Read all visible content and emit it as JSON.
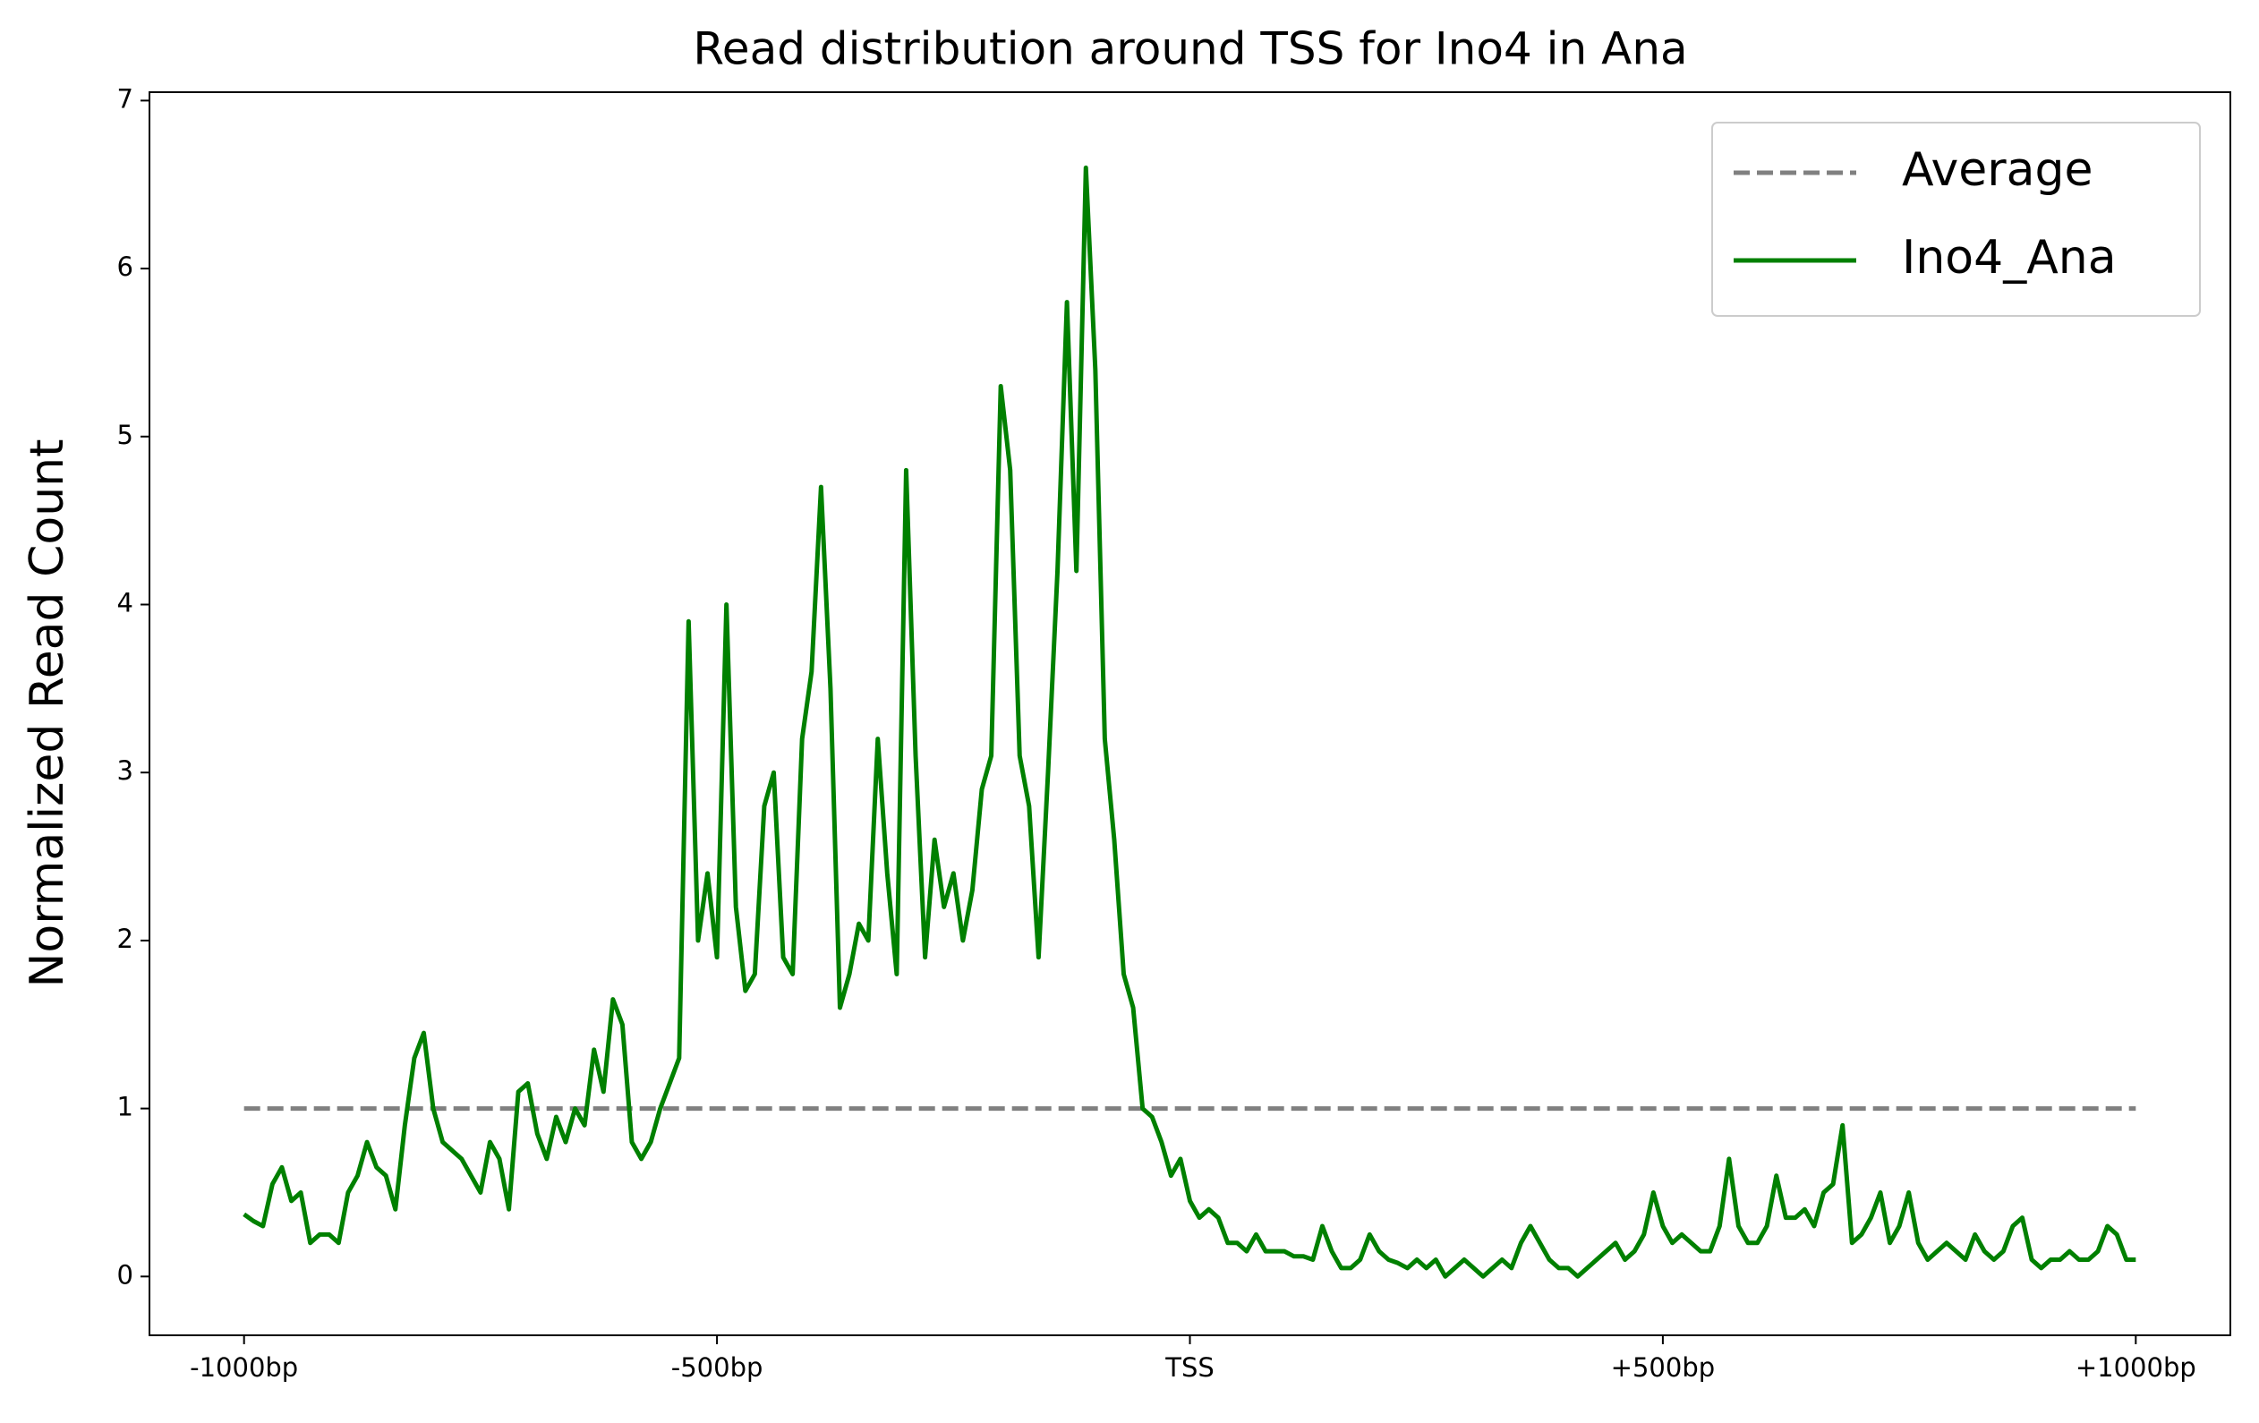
{
  "chart_data": {
    "type": "line",
    "title": "Read distribution around TSS for Ino4 in Ana",
    "y_label": "Normalized Read Count",
    "xlim": [
      -1100,
      1100
    ],
    "ylim": [
      -0.35,
      7.05
    ],
    "xticks": [
      {
        "value": -1000,
        "label": "-1000bp"
      },
      {
        "value": -500,
        "label": "-500bp"
      },
      {
        "value": 0,
        "label": "TSS"
      },
      {
        "value": 500,
        "label": "+500bp"
      },
      {
        "value": 1000,
        "label": "+1000bp"
      }
    ],
    "yticks": [
      0,
      1,
      2,
      3,
      4,
      5,
      6,
      7
    ],
    "legend": "upper-right",
    "series": [
      {
        "name": "Average",
        "color": "#808080",
        "dashed": true,
        "x": [
          -1000,
          1000
        ],
        "values": [
          1,
          1
        ]
      },
      {
        "name": "Ino4_Ana",
        "color": "#008000",
        "dashed": false,
        "x": [
          -1000,
          -990,
          -980,
          -970,
          -960,
          -950,
          -940,
          -930,
          -920,
          -910,
          -900,
          -890,
          -880,
          -870,
          -860,
          -850,
          -840,
          -830,
          -820,
          -810,
          -800,
          -790,
          -780,
          -770,
          -760,
          -750,
          -740,
          -730,
          -720,
          -710,
          -700,
          -690,
          -680,
          -670,
          -660,
          -650,
          -640,
          -630,
          -620,
          -610,
          -600,
          -590,
          -580,
          -570,
          -560,
          -550,
          -540,
          -530,
          -520,
          -510,
          -500,
          -490,
          -480,
          -470,
          -460,
          -450,
          -440,
          -430,
          -420,
          -410,
          -400,
          -390,
          -380,
          -370,
          -360,
          -350,
          -340,
          -330,
          -320,
          -310,
          -300,
          -290,
          -280,
          -270,
          -260,
          -250,
          -240,
          -230,
          -220,
          -210,
          -200,
          -190,
          -180,
          -170,
          -160,
          -150,
          -140,
          -130,
          -120,
          -110,
          -100,
          -90,
          -80,
          -70,
          -60,
          -50,
          -40,
          -30,
          -20,
          -10,
          0,
          10,
          20,
          30,
          40,
          50,
          60,
          70,
          80,
          90,
          100,
          110,
          120,
          130,
          140,
          150,
          160,
          170,
          180,
          190,
          200,
          210,
          220,
          230,
          240,
          250,
          260,
          270,
          280,
          290,
          300,
          310,
          320,
          330,
          340,
          350,
          360,
          370,
          380,
          390,
          400,
          410,
          420,
          430,
          440,
          450,
          460,
          470,
          480,
          490,
          500,
          510,
          520,
          530,
          540,
          550,
          560,
          570,
          580,
          590,
          600,
          610,
          620,
          630,
          640,
          650,
          660,
          670,
          680,
          690,
          700,
          710,
          720,
          730,
          740,
          750,
          760,
          770,
          780,
          790,
          800,
          810,
          820,
          830,
          840,
          850,
          860,
          870,
          880,
          890,
          900,
          910,
          920,
          930,
          940,
          950,
          960,
          970,
          980,
          990,
          1000
        ],
        "values": [
          0.37,
          0.33,
          0.3,
          0.55,
          0.65,
          0.45,
          0.5,
          0.2,
          0.25,
          0.25,
          0.2,
          0.5,
          0.6,
          0.8,
          0.65,
          0.6,
          0.4,
          0.9,
          1.3,
          1.45,
          1.0,
          0.8,
          0.75,
          0.7,
          0.6,
          0.5,
          0.8,
          0.7,
          0.4,
          1.1,
          1.15,
          0.85,
          0.7,
          0.95,
          0.8,
          1.0,
          0.9,
          1.35,
          1.1,
          1.65,
          1.5,
          0.8,
          0.7,
          0.8,
          1.0,
          1.15,
          1.3,
          3.9,
          2.0,
          2.4,
          1.9,
          4.0,
          2.2,
          1.7,
          1.8,
          2.8,
          3.0,
          1.9,
          1.8,
          3.2,
          3.6,
          4.7,
          3.5,
          1.6,
          1.8,
          2.1,
          2.0,
          3.2,
          2.4,
          1.8,
          4.8,
          3.1,
          1.9,
          2.6,
          2.2,
          2.4,
          2.0,
          2.3,
          2.9,
          3.1,
          5.3,
          4.8,
          3.1,
          2.8,
          1.9,
          3.0,
          4.2,
          5.8,
          4.2,
          6.6,
          5.4,
          3.2,
          2.6,
          1.8,
          1.6,
          1.0,
          0.95,
          0.8,
          0.6,
          0.7,
          0.45,
          0.35,
          0.4,
          0.35,
          0.2,
          0.2,
          0.15,
          0.25,
          0.15,
          0.15,
          0.15,
          0.12,
          0.12,
          0.1,
          0.3,
          0.15,
          0.05,
          0.05,
          0.1,
          0.25,
          0.15,
          0.1,
          0.08,
          0.05,
          0.1,
          0.05,
          0.1,
          0.0,
          0.05,
          0.1,
          0.05,
          0.0,
          0.05,
          0.1,
          0.05,
          0.2,
          0.3,
          0.2,
          0.1,
          0.05,
          0.05,
          0.0,
          0.05,
          0.1,
          0.15,
          0.2,
          0.1,
          0.15,
          0.25,
          0.5,
          0.3,
          0.2,
          0.25,
          0.2,
          0.15,
          0.15,
          0.3,
          0.7,
          0.3,
          0.2,
          0.2,
          0.3,
          0.6,
          0.35,
          0.35,
          0.4,
          0.3,
          0.5,
          0.55,
          0.9,
          0.2,
          0.25,
          0.35,
          0.5,
          0.2,
          0.3,
          0.5,
          0.2,
          0.1,
          0.15,
          0.2,
          0.15,
          0.1,
          0.25,
          0.15,
          0.1,
          0.15,
          0.3,
          0.35,
          0.1,
          0.05,
          0.1,
          0.1,
          0.15,
          0.1,
          0.1,
          0.15,
          0.3,
          0.25,
          0.1,
          0.1
        ]
      }
    ]
  }
}
